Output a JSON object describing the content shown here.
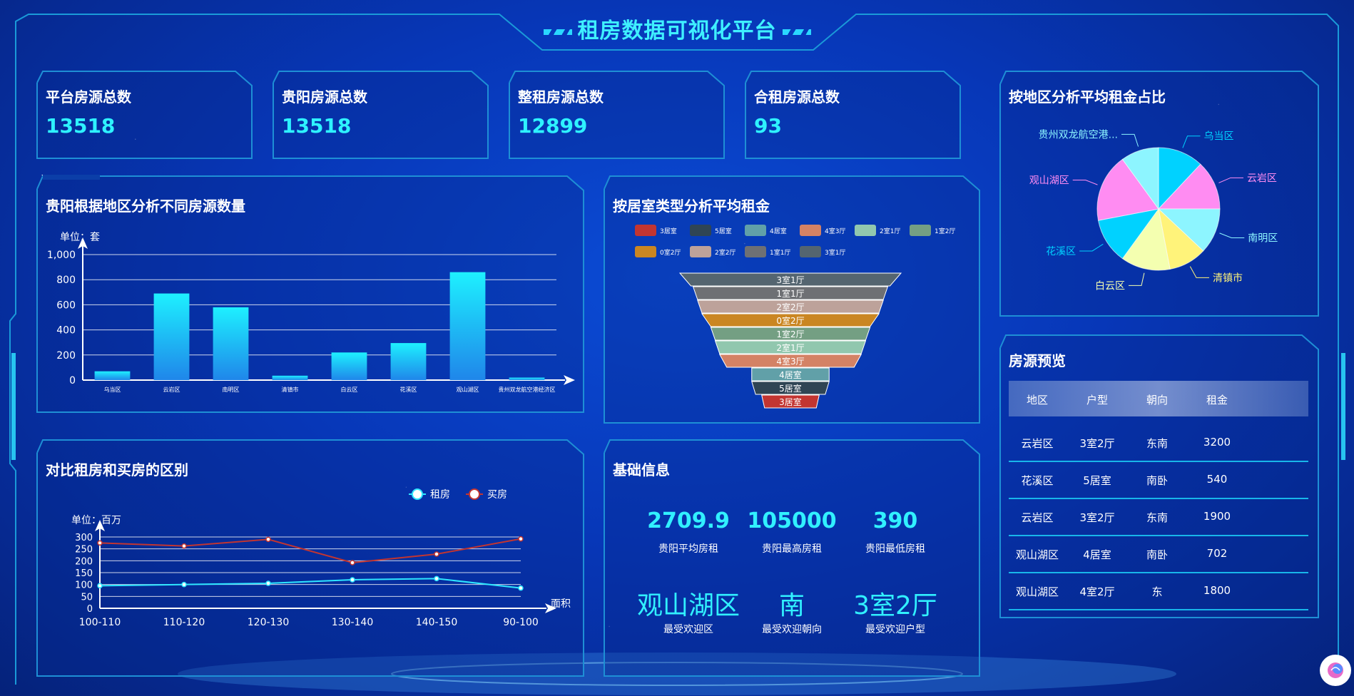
{
  "title": "租房数据可视化平台",
  "stats": [
    {
      "label": "平台房源总数",
      "value": "13518"
    },
    {
      "label": "贵阳房源总数",
      "value": "13518"
    },
    {
      "label": "整租房源总数",
      "value": "12899"
    },
    {
      "label": "合租房源总数",
      "value": "93"
    }
  ],
  "bar_panel": {
    "title": "贵阳根据地区分析不同房源数量",
    "unit": "单位：套"
  },
  "funnel_panel": {
    "title": "按居室类型分析平均租金"
  },
  "line_panel": {
    "title": "对比租房和买房的区别",
    "unit": "单位：百万"
  },
  "pie_panel": {
    "title": "按地区分析平均租金占比"
  },
  "basic_info": {
    "title": "基础信息",
    "items": [
      {
        "value": "2709.9",
        "label": "贵阳平均房租"
      },
      {
        "value": "105000",
        "label": "贵阳最高房租"
      },
      {
        "value": "390",
        "label": "贵阳最低房租"
      },
      {
        "value": "观山湖区",
        "label": "最受欢迎区"
      },
      {
        "value": "南",
        "label": "最受欢迎朝向"
      },
      {
        "value": "3室2厅",
        "label": "最受欢迎户型"
      }
    ]
  },
  "preview": {
    "title": "房源预览",
    "headers": [
      "地区",
      "户型",
      "朝向",
      "租金"
    ],
    "rows": [
      [
        "云岩区",
        "3室2厅",
        "东南",
        "3200"
      ],
      [
        "花溪区",
        "5居室",
        "南卧",
        "540"
      ],
      [
        "云岩区",
        "3室2厅",
        "东南",
        "1900"
      ],
      [
        "观山湖区",
        "4居室",
        "南卧",
        "702"
      ],
      [
        "观山湖区",
        "4室2厅",
        "东",
        "1800"
      ]
    ]
  },
  "chart_data": [
    {
      "type": "bar",
      "ylabel": "单位：套",
      "categories": [
        "乌当区",
        "云岩区",
        "南明区",
        "清镇市",
        "白云区",
        "花溪区",
        "观山湖区",
        "贵州双龙航空港经济区"
      ],
      "values": [
        70,
        690,
        580,
        35,
        220,
        295,
        860,
        20
      ],
      "ylim": [
        0,
        1000
      ],
      "yticks": [
        "1,000",
        "800",
        "600",
        "400",
        "200",
        "0"
      ],
      "grid": true
    },
    {
      "type": "funnel",
      "legend": [
        "3居室",
        "5居室",
        "4居室",
        "4室3厅",
        "2室1厅",
        "1室2厅",
        "0室2厅",
        "2室2厅",
        "1室1厅",
        "3室1厅"
      ],
      "legend_colors": [
        "#c23531",
        "#2f4554",
        "#61a0a8",
        "#d48265",
        "#91c7ae",
        "#749f83",
        "#ca8622",
        "#bda29a",
        "#6e7074",
        "#546570"
      ],
      "stages": [
        "3室1厅",
        "1室1厅",
        "2室2厅",
        "0室2厅",
        "1室2厅",
        "2室1厅",
        "4室3厅",
        "4居室",
        "5居室",
        "3居室"
      ],
      "stage_colors": [
        "#546570",
        "#6e7074",
        "#bda29a",
        "#ca8622",
        "#749f83",
        "#91c7ae",
        "#d48265",
        "#61a0a8",
        "#2f4554",
        "#c23531"
      ],
      "stage_widths": [
        1.0,
        0.88,
        0.84,
        0.8,
        0.72,
        0.68,
        0.64,
        0.35,
        0.35,
        0.26
      ]
    },
    {
      "type": "line",
      "ylabel": "单位：百万",
      "xlabel": "面积",
      "categories": [
        "100-110",
        "110-120",
        "120-130",
        "130-140",
        "140-150",
        "90-100"
      ],
      "ylim": [
        0,
        300
      ],
      "yticks": [
        "300",
        "250",
        "200",
        "150",
        "100",
        "50",
        "0"
      ],
      "series": [
        {
          "name": "租房",
          "color": "#2ee6ff",
          "values": [
            95,
            100,
            105,
            120,
            125,
            85
          ]
        },
        {
          "name": "买房",
          "color": "#c23531",
          "values": [
            275,
            262,
            290,
            192,
            228,
            292
          ]
        }
      ]
    },
    {
      "type": "pie",
      "slices": [
        {
          "name": "乌当区",
          "value": 12,
          "color": "#00d2ff"
        },
        {
          "name": "云岩区",
          "value": 13,
          "color": "#ff8cf2"
        },
        {
          "name": "南明区",
          "value": 12,
          "color": "#8df5ff"
        },
        {
          "name": "清镇市",
          "value": 10,
          "color": "#fff37a"
        },
        {
          "name": "白云区",
          "value": 13,
          "color": "#f4ffb0"
        },
        {
          "name": "花溪区",
          "value": 12,
          "color": "#00d2ff"
        },
        {
          "name": "观山湖区",
          "value": 18,
          "color": "#ff8cf2"
        },
        {
          "name": "贵州双龙航空港...",
          "value": 10,
          "color": "#8df5ff"
        }
      ]
    }
  ]
}
